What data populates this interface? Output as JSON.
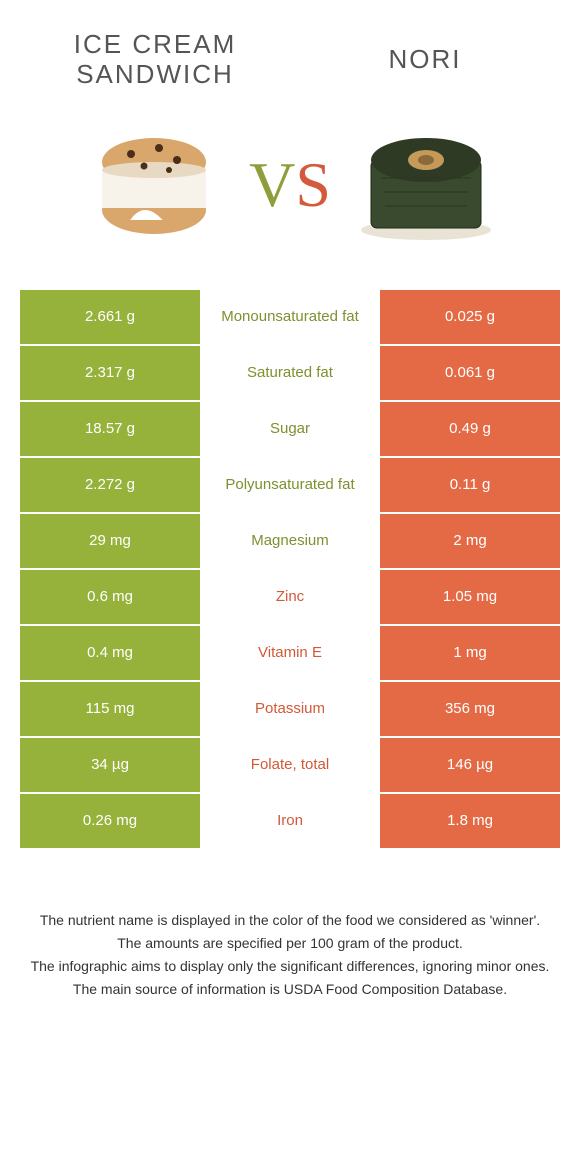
{
  "colors": {
    "left": "#96b23a",
    "right": "#e36a45",
    "left_text": "#7c9130",
    "right_text": "#d05a38",
    "bg": "#ffffff"
  },
  "food_left": {
    "title": "ICE CREAM SANDWICH"
  },
  "food_right": {
    "title": "NORI"
  },
  "vs": {
    "v": "V",
    "s": "S"
  },
  "rows": [
    {
      "left": "2.661 g",
      "label": "Monounsaturated fat",
      "right": "0.025 g",
      "winner": "left"
    },
    {
      "left": "2.317 g",
      "label": "Saturated fat",
      "right": "0.061 g",
      "winner": "left"
    },
    {
      "left": "18.57 g",
      "label": "Sugar",
      "right": "0.49 g",
      "winner": "left"
    },
    {
      "left": "2.272 g",
      "label": "Polyunsaturated fat",
      "right": "0.11 g",
      "winner": "left"
    },
    {
      "left": "29 mg",
      "label": "Magnesium",
      "right": "2 mg",
      "winner": "left"
    },
    {
      "left": "0.6 mg",
      "label": "Zinc",
      "right": "1.05 mg",
      "winner": "right"
    },
    {
      "left": "0.4 mg",
      "label": "Vitamin E",
      "right": "1 mg",
      "winner": "right"
    },
    {
      "left": "115 mg",
      "label": "Potassium",
      "right": "356 mg",
      "winner": "right"
    },
    {
      "left": "34 µg",
      "label": "Folate, total",
      "right": "146 µg",
      "winner": "right"
    },
    {
      "left": "0.26 mg",
      "label": "Iron",
      "right": "1.8 mg",
      "winner": "right"
    }
  ],
  "footer": {
    "line1": "The nutrient name is displayed in the color of the food we considered as 'winner'.",
    "line2": "The amounts are specified per 100 gram of the product.",
    "line3": "The infographic aims to display only the significant differences, ignoring minor ones.",
    "line4": "The main source of information is USDA Food Composition Database."
  }
}
